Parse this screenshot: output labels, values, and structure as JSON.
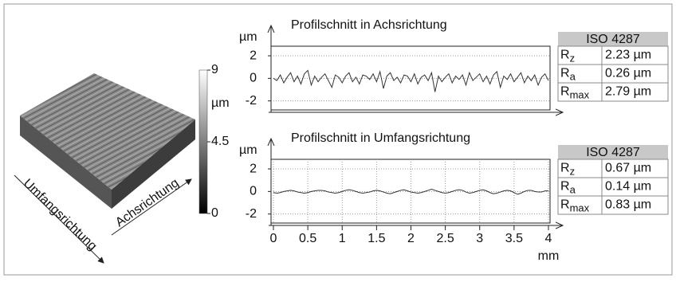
{
  "surface": {
    "colorbar": {
      "lim": [
        0,
        9
      ],
      "ticks": [
        9,
        4.5,
        0
      ],
      "unit": "µm"
    },
    "axis_labels": [
      "Umfangsrichtung",
      "Achsrichtung"
    ]
  },
  "chart_data": [
    {
      "type": "line",
      "title": "Profilschnitt in Achsrichtung",
      "y_label": "µm",
      "color": "#333333",
      "grid": true,
      "xlim": [
        0,
        4
      ],
      "ylim": [
        -2.8,
        2.85
      ],
      "yticks": [
        2,
        0,
        -2
      ],
      "x": [
        0,
        0.05,
        0.1,
        0.15,
        0.2,
        0.25,
        0.3,
        0.35,
        0.4,
        0.45,
        0.5,
        0.55,
        0.6,
        0.65,
        0.7,
        0.75,
        0.8,
        0.85,
        0.9,
        0.95,
        1,
        1.05,
        1.1,
        1.15,
        1.2,
        1.25,
        1.3,
        1.35,
        1.4,
        1.45,
        1.5,
        1.55,
        1.6,
        1.65,
        1.7,
        1.75,
        1.8,
        1.85,
        1.9,
        1.95,
        2,
        2.05,
        2.1,
        2.15,
        2.2,
        2.25,
        2.3,
        2.35,
        2.4,
        2.45,
        2.5,
        2.55,
        2.6,
        2.65,
        2.7,
        2.75,
        2.8,
        2.85,
        2.9,
        2.95,
        3,
        3.05,
        3.1,
        3.15,
        3.2,
        3.25,
        3.3,
        3.35,
        3.4,
        3.45,
        3.5,
        3.55,
        3.6,
        3.65,
        3.7,
        3.75,
        3.8,
        3.85,
        3.9,
        3.95,
        4
      ],
      "values": [
        0,
        -0.2,
        0.3,
        -0.4,
        0.1,
        0.5,
        -0.3,
        0.2,
        -0.5,
        0.4,
        0.7,
        -0.6,
        0.2,
        -0.3,
        0.1,
        0.4,
        -0.2,
        -0.8,
        0.3,
        0.1,
        -0.4,
        0.2,
        0.5,
        -0.3,
        0.1,
        -0.5,
        0.3,
        0.2,
        -0.1,
        0.4,
        -0.3,
        0.6,
        -0.9,
        0.2,
        0.5,
        -0.2,
        0.1,
        -0.4,
        0.3,
        0.2,
        -0.3,
        0.4,
        -0.5,
        0.1,
        0.3,
        -0.2,
        0.5,
        -1.2,
        0.2,
        -0.3,
        0.1,
        0.4,
        -0.4,
        0.2,
        -0.1,
        0.3,
        -0.6,
        0.5,
        -0.2,
        0.1,
        0.4,
        -0.3,
        0.2,
        -0.5,
        0.3,
        0.6,
        -0.8,
        0.2,
        -0.1,
        0.4,
        -0.3,
        0.1,
        0.5,
        -0.4,
        0.2,
        -0.2,
        0.3,
        -0.6,
        0.1,
        0.4,
        -0.2
      ],
      "table": {
        "header": "ISO 4287",
        "rows": [
          {
            "symbol": "R",
            "sub": "z",
            "value": "2.23 µm"
          },
          {
            "symbol": "R",
            "sub": "a",
            "value": "0.26 µm"
          },
          {
            "symbol": "R",
            "sub": "max",
            "value": "2.79 µm"
          }
        ]
      }
    },
    {
      "type": "line",
      "title": "Profilschnitt in Umfangsrichtung",
      "y_label": "µm",
      "x_label": "mm",
      "color": "#333333",
      "grid": true,
      "xlim": [
        0,
        4
      ],
      "ylim": [
        -2.8,
        2.85
      ],
      "yticks": [
        2,
        0,
        -2
      ],
      "xticks": [
        0,
        0.5,
        1,
        1.5,
        2,
        2.5,
        3,
        3.5,
        4
      ],
      "x": [
        0,
        0.05,
        0.1,
        0.15,
        0.2,
        0.25,
        0.3,
        0.35,
        0.4,
        0.45,
        0.5,
        0.55,
        0.6,
        0.65,
        0.7,
        0.75,
        0.8,
        0.85,
        0.9,
        0.95,
        1,
        1.05,
        1.1,
        1.15,
        1.2,
        1.25,
        1.3,
        1.35,
        1.4,
        1.45,
        1.5,
        1.55,
        1.6,
        1.65,
        1.7,
        1.75,
        1.8,
        1.85,
        1.9,
        1.95,
        2,
        2.05,
        2.1,
        2.15,
        2.2,
        2.25,
        2.3,
        2.35,
        2.4,
        2.45,
        2.5,
        2.55,
        2.6,
        2.65,
        2.7,
        2.75,
        2.8,
        2.85,
        2.9,
        2.95,
        3,
        3.05,
        3.1,
        3.15,
        3.2,
        3.25,
        3.3,
        3.35,
        3.4,
        3.45,
        3.5,
        3.55,
        3.6,
        3.65,
        3.7,
        3.75,
        3.8,
        3.85,
        3.9,
        3.95,
        4
      ],
      "values": [
        -0.1,
        -0.15,
        -0.1,
        0,
        0.05,
        0.1,
        0.05,
        -0.05,
        -0.1,
        -0.15,
        -0.1,
        0,
        0.05,
        0.1,
        0.1,
        0.05,
        -0.05,
        -0.1,
        -0.15,
        -0.1,
        0,
        0.1,
        0.15,
        0.1,
        0,
        -0.1,
        -0.15,
        -0.1,
        -0.05,
        0.05,
        0.1,
        0.05,
        -0.05,
        -0.15,
        -0.2,
        -0.1,
        0,
        0.1,
        0.15,
        0.05,
        -0.05,
        -0.1,
        -0.15,
        -0.1,
        0,
        0.1,
        0.2,
        0.1,
        0,
        -0.1,
        -0.15,
        -0.1,
        0,
        0.1,
        0.15,
        0.1,
        -0.05,
        -0.15,
        -0.1,
        0,
        0.1,
        0.15,
        0.05,
        -0.1,
        -0.2,
        -0.15,
        -0.05,
        0.05,
        0.1,
        0.05,
        -0.1,
        -0.25,
        -0.15,
        0,
        0.1,
        0.1,
        0,
        -0.05,
        -0.05,
        0.05,
        0.05
      ],
      "table": {
        "header": "ISO 4287",
        "rows": [
          {
            "symbol": "R",
            "sub": "z",
            "value": "0.67 µm"
          },
          {
            "symbol": "R",
            "sub": "a",
            "value": "0.14 µm"
          },
          {
            "symbol": "R",
            "sub": "max",
            "value": "0.83 µm"
          }
        ]
      }
    }
  ]
}
